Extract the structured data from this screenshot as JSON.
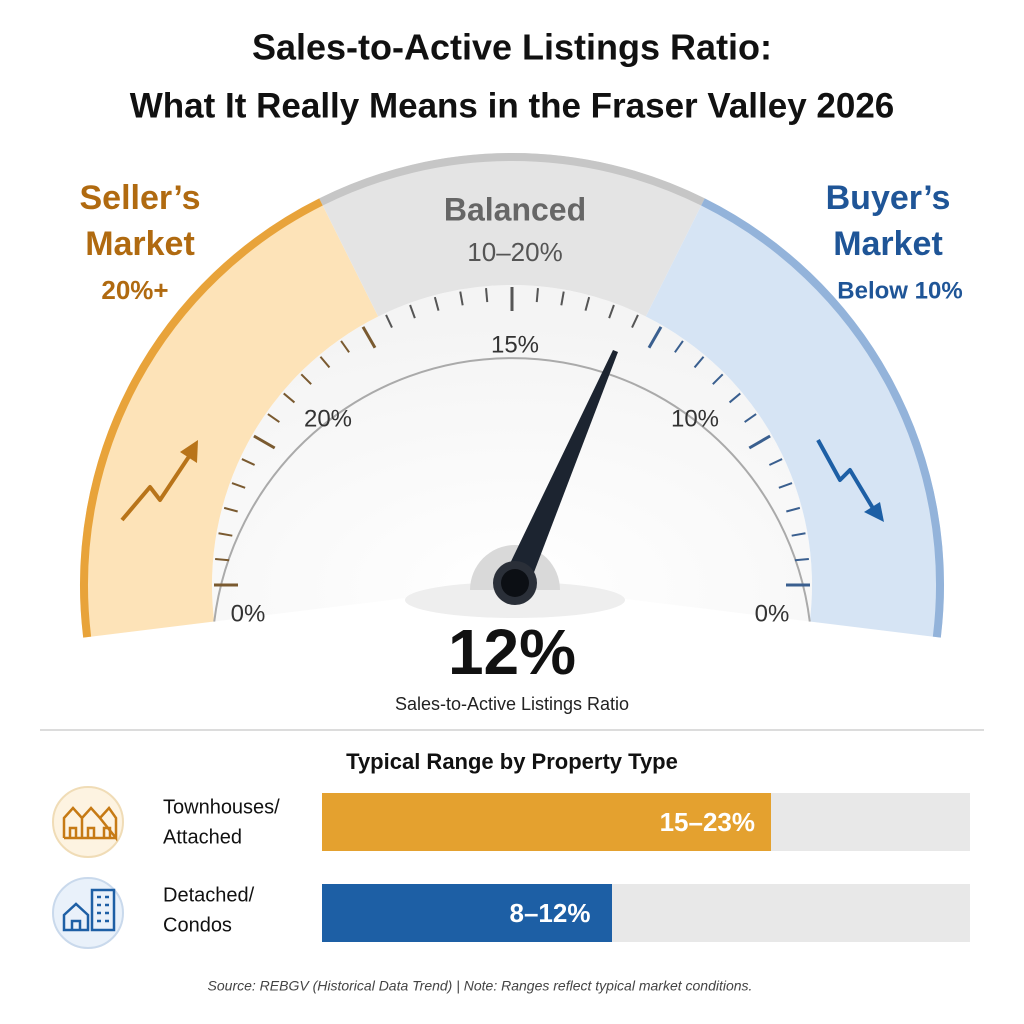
{
  "header": {
    "title_line1": "Sales-to-Active Listings Ratio:",
    "title_line2": "What It Really Means in the Fraser Valley 2026"
  },
  "gauge": {
    "zones": [
      {
        "line1": "Seller’s",
        "line2": "Market",
        "range": "20%+"
      },
      {
        "line1": "Balanced",
        "range": "10–20%"
      },
      {
        "line1": "Buyer’s",
        "line2": "Market",
        "range": "Below 10%"
      }
    ],
    "scale_labels": [
      "0%",
      "20%",
      "15%",
      "10%",
      "0%"
    ],
    "reading": "12%",
    "reading_label": "Sales-to-Active Listings Ratio"
  },
  "property_ranges": {
    "title": "Typical Range by Property Type",
    "rows": [
      {
        "label_line1": "Townhouses/",
        "label_line2": "Attached",
        "range": "15–23%"
      },
      {
        "label_line1": "Detached/",
        "label_line2": "Condos",
        "range": "8–12%"
      }
    ]
  },
  "footer": {
    "text": "Source: REBGV (Historical Data Trend)   |   Note: Ranges reflect typical market conditions."
  }
}
